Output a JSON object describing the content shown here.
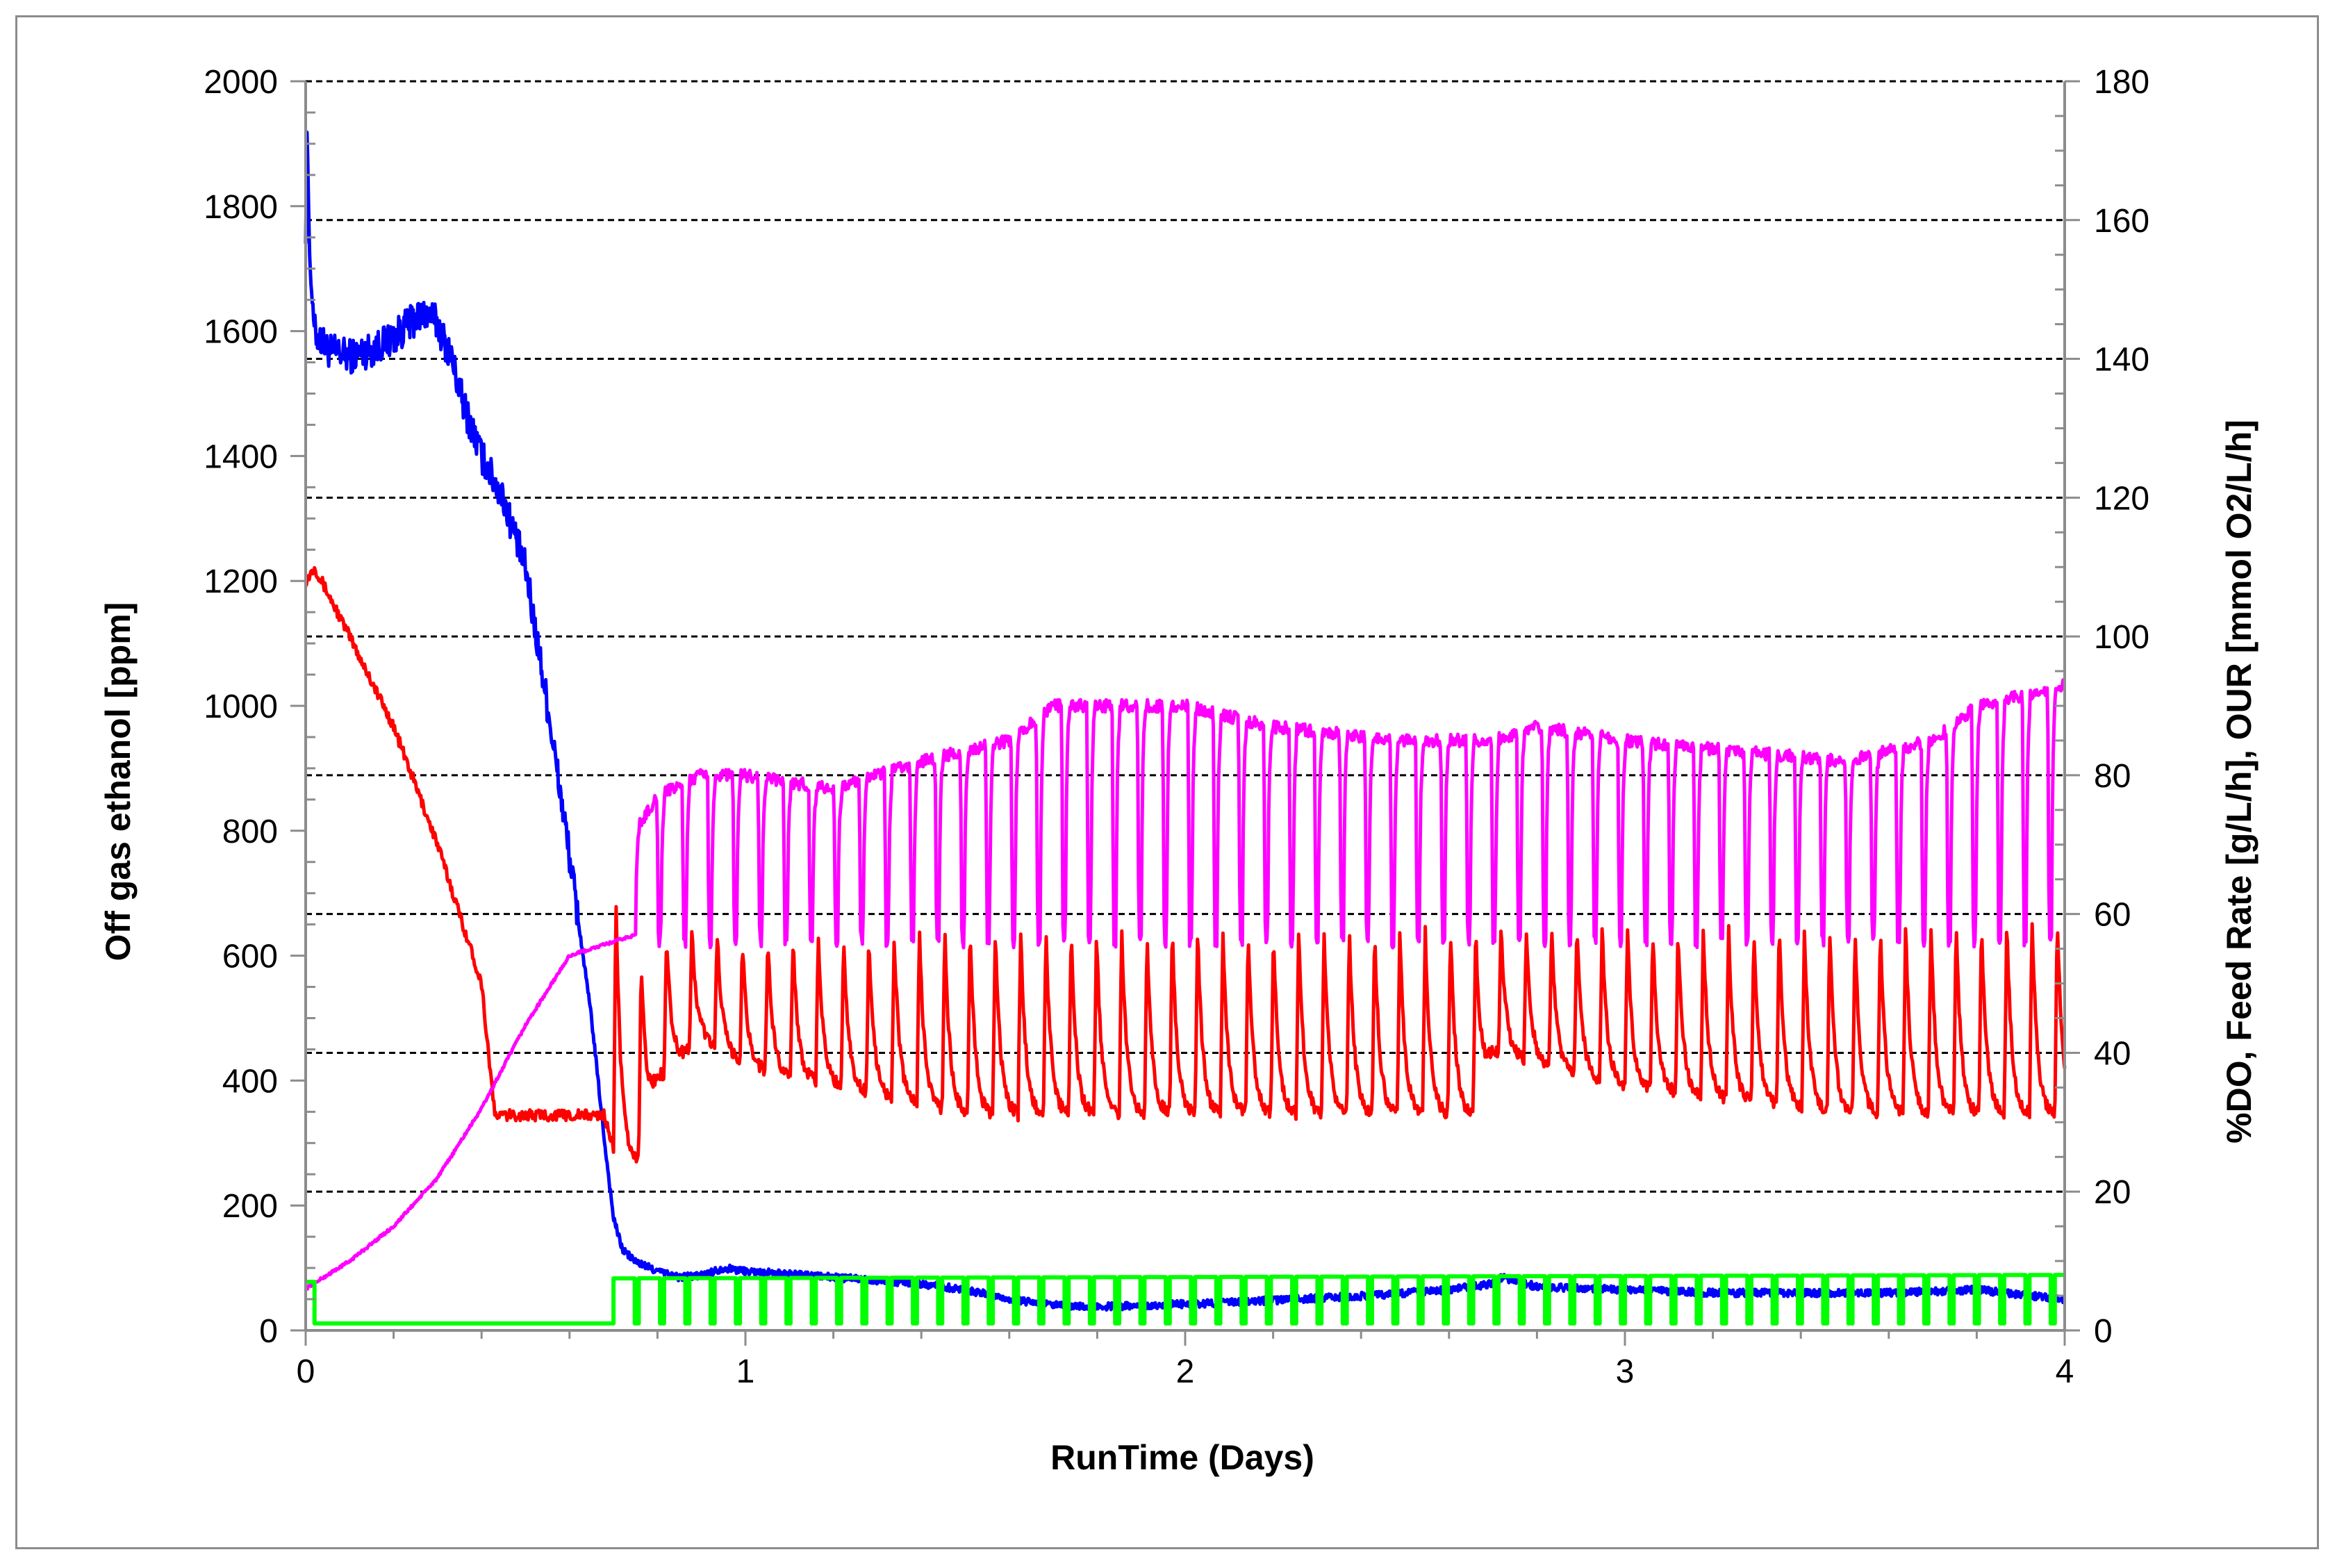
{
  "chart_data": {
    "type": "line",
    "title": "",
    "xlabel": "RunTime (Days)",
    "ylabel": "Off gas ethanol [ppm]",
    "y2label": "%DO, Feed Rate [g/L/h], OUR [mmol O2/L/h]",
    "xlim": [
      0,
      4
    ],
    "ylim": [
      0,
      2000
    ],
    "y2lim": [
      0,
      180
    ],
    "x_ticks": [
      "0",
      "1",
      "2",
      "3",
      "4"
    ],
    "y_ticks": [
      "0",
      "200",
      "400",
      "600",
      "800",
      "1000",
      "1200",
      "1400",
      "1600",
      "1800",
      "2000"
    ],
    "y2_ticks": [
      "0",
      "20",
      "40",
      "60",
      "80",
      "100",
      "120",
      "140",
      "160",
      "180"
    ],
    "grid": "horizontal dashed at right-axis ticks",
    "series": [
      {
        "name": "Off gas ethanol",
        "axis": "left",
        "color": "#0000ff",
        "x": [
          0,
          0.003,
          0.01,
          0.02,
          0.05,
          0.1,
          0.15,
          0.2,
          0.25,
          0.28,
          0.3,
          0.33,
          0.36,
          0.4,
          0.45,
          0.5,
          0.55,
          0.6,
          0.65,
          0.68,
          0.7,
          0.72,
          0.75,
          0.8,
          0.85,
          0.9,
          0.95,
          1.0,
          1.1,
          1.2,
          1.3,
          1.4,
          1.5,
          1.6,
          1.7,
          1.8,
          1.9,
          2.0,
          2.2,
          2.4,
          2.6,
          2.7,
          2.72,
          2.8,
          3.0,
          3.2,
          3.4,
          3.6,
          3.8,
          4.0
        ],
        "values": [
          1750,
          1920,
          1700,
          1600,
          1570,
          1560,
          1570,
          1590,
          1620,
          1630,
          1610,
          1560,
          1480,
          1400,
          1330,
          1220,
          1000,
          760,
          500,
          300,
          180,
          130,
          110,
          95,
          85,
          88,
          100,
          95,
          90,
          85,
          80,
          75,
          65,
          50,
          40,
          38,
          40,
          42,
          48,
          55,
          65,
          75,
          85,
          70,
          65,
          60,
          60,
          60,
          65,
          50
        ]
      },
      {
        "name": "%DO",
        "axis": "right",
        "color": "#ff0000",
        "waveform": "oscillating between low and high after day 0.7",
        "x": [
          0,
          0.02,
          0.1,
          0.2,
          0.3,
          0.4,
          0.43,
          0.5,
          0.6,
          0.68,
          0.7,
          0.75,
          0.8,
          0.9,
          1.0,
          1.5,
          2.0,
          2.5,
          2.65,
          2.7,
          3.0,
          3.5,
          4.0
        ],
        "low": [
          108,
          110,
          100,
          87,
          70,
          50,
          31,
          31,
          31,
          31,
          26,
          24,
          36,
          42,
          38,
          31,
          31,
          31,
          31,
          40,
          35,
          31,
          31
        ],
        "high": [
          108,
          110,
          100,
          87,
          70,
          50,
          31,
          31,
          31,
          31,
          64,
          52,
          57,
          58,
          56,
          58,
          58,
          58,
          58,
          58,
          58,
          58,
          60
        ]
      },
      {
        "name": "OUR",
        "axis": "right",
        "color": "#ff00ff",
        "waveform": "oscillating between low and high after day 0.75",
        "x": [
          0,
          0.1,
          0.2,
          0.3,
          0.4,
          0.5,
          0.6,
          0.7,
          0.75,
          0.8,
          0.9,
          1.0,
          1.2,
          1.4,
          1.6,
          1.7,
          1.8,
          2.0,
          2.2,
          2.5,
          2.7,
          2.8,
          3.0,
          3.5,
          3.7,
          3.8,
          4.0
        ],
        "low": [
          6,
          10,
          15,
          22,
          32,
          44,
          54,
          56,
          57,
          56,
          56,
          56,
          56,
          56,
          56,
          56,
          56,
          56,
          56,
          56,
          56,
          56,
          56,
          56,
          56,
          56,
          56
        ],
        "high": [
          6,
          10,
          15,
          22,
          32,
          44,
          54,
          60,
          72,
          77,
          80,
          80,
          78,
          82,
          85,
          90,
          90,
          90,
          87,
          85,
          85,
          87,
          85,
          82,
          85,
          90,
          93
        ]
      },
      {
        "name": "Feed Rate",
        "axis": "right",
        "color": "#00ff00",
        "waveform": "square pulses after day 0.7",
        "x": [
          0,
          0.02,
          0.7,
          4.0
        ],
        "low": [
          7,
          1,
          1,
          1
        ],
        "high": [
          7,
          1,
          7.5,
          8
        ]
      }
    ]
  }
}
